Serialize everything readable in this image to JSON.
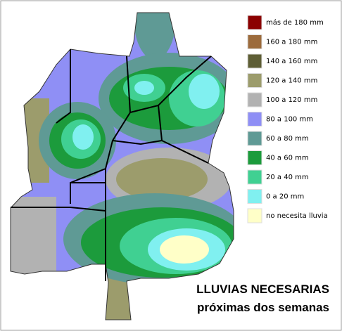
{
  "title": {
    "line1": "LLUVIAS NECESARIAS",
    "line2": "próximas dos semanas"
  },
  "legend": {
    "items": [
      {
        "label": "más de 180 mm",
        "color": "#8b0000"
      },
      {
        "label": "160 a 180 mm",
        "color": "#9c6b3c"
      },
      {
        "label": "140 a 160 mm",
        "color": "#5e5e35"
      },
      {
        "label": "120 a 140 mm",
        "color": "#9c9c6c"
      },
      {
        "label": "100 a 120 mm",
        "color": "#b2b2b2"
      },
      {
        "label": "80 a 100 mm",
        "color": "#8f8ff5"
      },
      {
        "label": "60 a 80 mm",
        "color": "#5f9a95"
      },
      {
        "label": "40 a 60 mm",
        "color": "#1c9b3c"
      },
      {
        "label": "20 a 40 mm",
        "color": "#40d092"
      },
      {
        "label": "0 a 20 mm",
        "color": "#80f0f0"
      },
      {
        "label": "no necesita lluvia",
        "color": "#ffffc8"
      }
    ]
  }
}
